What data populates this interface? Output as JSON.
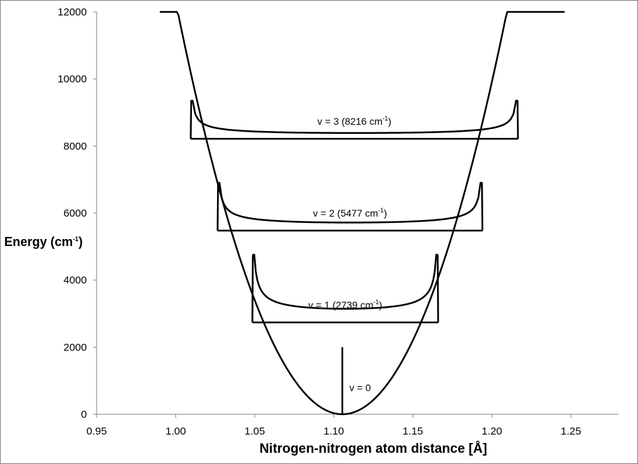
{
  "chart_data": {
    "type": "line",
    "title": "",
    "xlabel": "Nitrogen-nitrogen atom distance [Å]",
    "ylabel": "Energy (cm",
    "ylabel_sup": "-1",
    "ylabel_end": ")",
    "xlim": [
      0.95,
      1.28
    ],
    "ylim": [
      0,
      12000
    ],
    "xticks": [
      "0.95",
      "1.00",
      "1.05",
      "1.10",
      "1.15",
      "1.20",
      "1.25"
    ],
    "xtick_values": [
      0.95,
      1.0,
      1.05,
      1.1,
      1.15,
      1.2,
      1.25
    ],
    "yticks": [
      "0",
      "2000",
      "4000",
      "6000",
      "8000",
      "10000",
      "12000"
    ],
    "ytick_values": [
      0,
      2000,
      4000,
      6000,
      8000,
      10000,
      12000
    ],
    "grid": false,
    "potential": {
      "name": "potential",
      "equilibrium_x": 1.1054,
      "k": 1108000,
      "x_range": [
        0.99,
        1.246
      ]
    },
    "levels": [
      {
        "v": 0,
        "energy": 0,
        "label": "v = 0",
        "peak": 2000,
        "x_min": 1.1054,
        "x_max": 1.1054
      },
      {
        "v": 1,
        "energy": 2739,
        "label_pre": "v = 1 (2739 cm",
        "label_sup": "-1",
        "label_post": ")",
        "peak": 4750,
        "x_min": 1.0485,
        "x_max": 1.166
      },
      {
        "v": 2,
        "energy": 5477,
        "label_pre": "v = 2 (5477 cm",
        "label_sup": "-1",
        "label_post": ")",
        "peak": 6900,
        "x_min": 1.0265,
        "x_max": 1.194
      },
      {
        "v": 3,
        "energy": 8216,
        "label_pre": "v = 3 (8216 cm",
        "label_sup": "-1",
        "label_post": ")",
        "peak": 9350,
        "x_min": 1.0095,
        "x_max": 1.2165
      }
    ]
  }
}
